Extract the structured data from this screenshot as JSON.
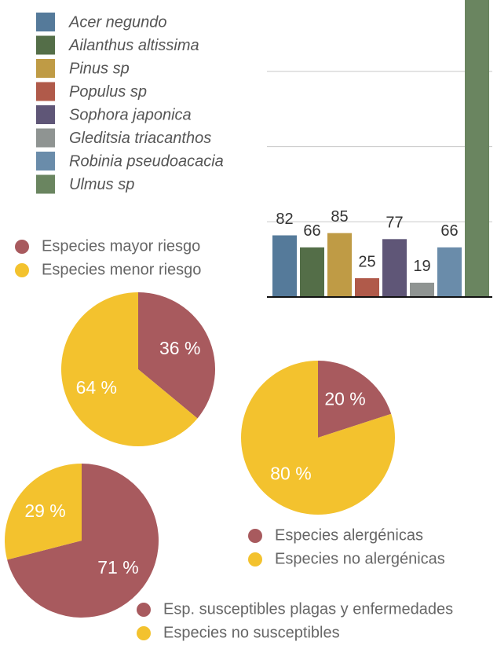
{
  "chart_data": [
    {
      "type": "bar",
      "categories": [
        "Acer negundo",
        "Ailanthus altissima",
        "Pinus sp",
        "Populus sp",
        "Sophora japonica",
        "Gleditsia triacanthos",
        "Robinia pseudoacacia",
        "Ulmus sp"
      ],
      "values": [
        82,
        66,
        85,
        25,
        77,
        19,
        66,
        400
      ],
      "value_labels": [
        "82",
        "66",
        "85",
        "25",
        "77",
        "19",
        "66",
        null
      ],
      "colors": [
        "#557a9a",
        "#546e48",
        "#bf9b45",
        "#b05a4a",
        "#5f5677",
        "#8f9492",
        "#6a8caa",
        "#6a8560"
      ],
      "ylim": [
        0,
        395
      ],
      "yticks": [
        0,
        100,
        200,
        300
      ],
      "grid": true
    },
    {
      "type": "pie",
      "categories": [
        "Especies mayor riesgo",
        "Especies menor riesgo"
      ],
      "values": [
        36,
        64
      ],
      "value_labels": [
        "36 %",
        "64 %"
      ],
      "colors": [
        "#a85a5e",
        "#f3c22e"
      ]
    },
    {
      "type": "pie",
      "categories": [
        "Especies alergénicas",
        "Especies no alergénicas"
      ],
      "values": [
        20,
        80
      ],
      "value_labels": [
        "20 %",
        "80 %"
      ],
      "colors": [
        "#a85a5e",
        "#f3c22e"
      ]
    },
    {
      "type": "pie",
      "categories": [
        "Esp. susceptibles plagas y enfermedades",
        "Especies no susceptibles"
      ],
      "values": [
        71,
        29
      ],
      "value_labels": [
        "71 %",
        "29 %"
      ],
      "colors": [
        "#a85a5e",
        "#f3c22e"
      ]
    }
  ]
}
